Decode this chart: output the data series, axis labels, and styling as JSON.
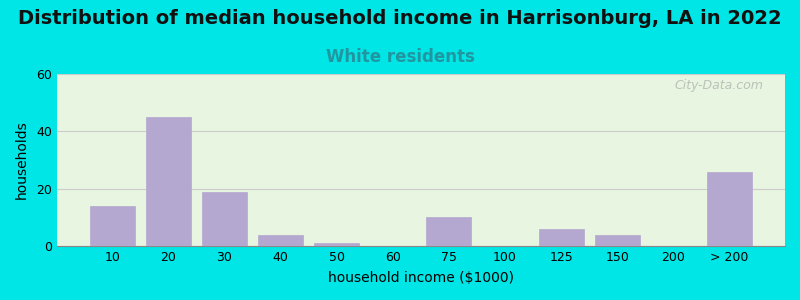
{
  "title": "Distribution of median household income in Harrisonburg, LA in 2022",
  "subtitle": "White residents",
  "xlabel": "household income ($1000)",
  "ylabel": "households",
  "bar_labels": [
    "10",
    "20",
    "30",
    "40",
    "50",
    "60",
    "75",
    "100",
    "125",
    "150",
    "200",
    "> 200"
  ],
  "bar_values": [
    14,
    45,
    19,
    4,
    1,
    0,
    10,
    0,
    6,
    4,
    0,
    26
  ],
  "bar_color": "#b5a8d0",
  "ylim": [
    0,
    60
  ],
  "yticks": [
    0,
    20,
    40,
    60
  ],
  "background_top": "#e8f5e0",
  "background_bottom": "#f8fff8",
  "outer_bg": "#00e5e5",
  "title_fontsize": 14,
  "subtitle_fontsize": 12,
  "subtitle_color": "#2196a0",
  "watermark": "City-Data.com"
}
